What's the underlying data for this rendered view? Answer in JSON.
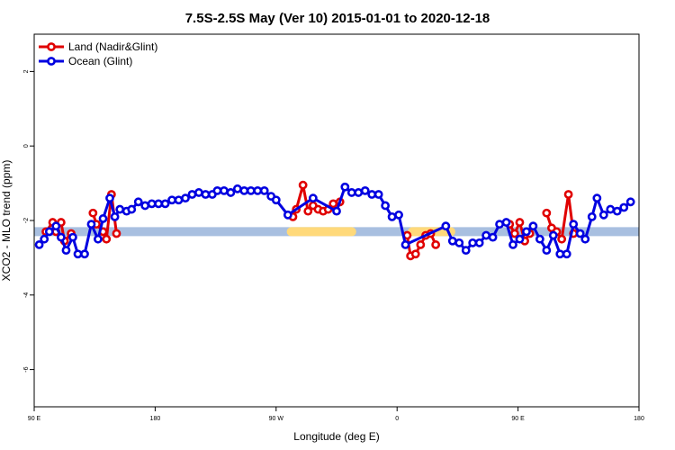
{
  "chart_data": {
    "type": "line",
    "title": "7.5S-2.5S May (Ver 10)   2015-01-01 to 2020-12-18",
    "xlabel": "Longitude (deg E)",
    "ylabel": "XCO2 - MLO trend (ppm)",
    "xlim": [
      90,
      450
    ],
    "ylim": [
      -7,
      3
    ],
    "xticks": [
      {
        "value": 90,
        "label": "90 E"
      },
      {
        "value": 162,
        "label": "180"
      },
      {
        "value": 234,
        "label": "90 W"
      },
      {
        "value": 306,
        "label": "0"
      },
      {
        "value": 378,
        "label": "90 E"
      },
      {
        "value": 450,
        "label": "180"
      }
    ],
    "yticks": [
      {
        "value": -6,
        "label": "-6"
      },
      {
        "value": -4,
        "label": "-4"
      },
      {
        "value": -2,
        "label": "-2"
      },
      {
        "value": 0,
        "label": "0"
      },
      {
        "value": 2,
        "label": "2"
      }
    ],
    "legend_position": "top-left",
    "grid": false,
    "colors": {
      "land": "#e00000",
      "ocean": "#0000e0",
      "ocean_band": "#a8bfe0",
      "land_band": "#ffd97a"
    },
    "bands": [
      {
        "name": "ocean-band",
        "x0": 90,
        "x1": 450,
        "y": -2.3,
        "color": "#a8bfe0"
      },
      {
        "name": "land-band",
        "x0": 243,
        "x1": 279,
        "y": -2.3,
        "color": "#ffd97a"
      },
      {
        "name": "land-band",
        "x0": 315,
        "x1": 338,
        "y": -2.3,
        "color": "#ffd97a"
      }
    ],
    "series": [
      {
        "name": "Land (Nadir&Glint)",
        "key": "land",
        "color": "#e00000",
        "segments": [
          [
            [
              97,
              -2.3
            ],
            [
              101,
              -2.05
            ],
            [
              103,
              -2.3
            ],
            [
              106,
              -2.05
            ],
            [
              108,
              -2.55
            ],
            [
              112,
              -2.35
            ]
          ],
          [
            [
              125,
              -1.8
            ],
            [
              127,
              -2.1
            ],
            [
              131,
              -2.3
            ],
            [
              133,
              -2.5
            ],
            [
              136,
              -1.3
            ],
            [
              139,
              -2.35
            ]
          ],
          [
            [
              244,
              -1.9
            ],
            [
              246,
              -1.7
            ],
            [
              250,
              -1.05
            ],
            [
              253,
              -1.75
            ],
            [
              256,
              -1.6
            ],
            [
              259,
              -1.7
            ],
            [
              262,
              -1.75
            ],
            [
              265,
              -1.7
            ],
            [
              268,
              -1.55
            ],
            [
              272,
              -1.5
            ]
          ],
          [
            [
              312,
              -2.4
            ],
            [
              314,
              -2.95
            ],
            [
              317,
              -2.9
            ],
            [
              320,
              -2.65
            ],
            [
              323,
              -2.4
            ],
            [
              326,
              -2.35
            ],
            [
              329,
              -2.65
            ]
          ],
          [
            [
              373,
              -2.1
            ],
            [
              376,
              -2.35
            ],
            [
              379,
              -2.05
            ],
            [
              382,
              -2.55
            ],
            [
              385,
              -2.35
            ]
          ],
          [
            [
              395,
              -1.8
            ],
            [
              398,
              -2.2
            ],
            [
              401,
              -2.3
            ],
            [
              404,
              -2.5
            ],
            [
              408,
              -1.3
            ],
            [
              411,
              -2.35
            ]
          ]
        ]
      },
      {
        "name": "Ocean (Glint)",
        "key": "ocean",
        "color": "#0000e0",
        "points": [
          [
            93,
            -2.65
          ],
          [
            96,
            -2.5
          ],
          [
            99,
            -2.3
          ],
          [
            103,
            -2.15
          ],
          [
            106,
            -2.45
          ],
          [
            109,
            -2.8
          ],
          [
            113,
            -2.45
          ],
          [
            116,
            -2.9
          ],
          [
            120,
            -2.9
          ],
          [
            124,
            -2.1
          ],
          [
            128,
            -2.5
          ],
          [
            131,
            -1.95
          ],
          [
            135,
            -1.4
          ],
          [
            138,
            -1.9
          ],
          [
            141,
            -1.7
          ],
          [
            145,
            -1.75
          ],
          [
            148,
            -1.7
          ],
          [
            152,
            -1.5
          ],
          [
            156,
            -1.6
          ],
          [
            160,
            -1.55
          ],
          [
            164,
            -1.55
          ],
          [
            168,
            -1.55
          ],
          [
            172,
            -1.45
          ],
          [
            176,
            -1.45
          ],
          [
            180,
            -1.4
          ],
          [
            184,
            -1.3
          ],
          [
            188,
            -1.25
          ],
          [
            192,
            -1.3
          ],
          [
            196,
            -1.3
          ],
          [
            199,
            -1.2
          ],
          [
            203,
            -1.2
          ],
          [
            207,
            -1.25
          ],
          [
            211,
            -1.15
          ],
          [
            215,
            -1.2
          ],
          [
            219,
            -1.2
          ],
          [
            223,
            -1.2
          ],
          [
            227,
            -1.2
          ],
          [
            231,
            -1.35
          ],
          [
            234,
            -1.45
          ],
          [
            241,
            -1.85
          ],
          [
            256,
            -1.4
          ],
          [
            270,
            -1.75
          ],
          [
            275,
            -1.1
          ],
          [
            279,
            -1.25
          ],
          [
            283,
            -1.25
          ],
          [
            287,
            -1.2
          ],
          [
            291,
            -1.3
          ],
          [
            295,
            -1.3
          ],
          [
            299,
            -1.6
          ],
          [
            303,
            -1.9
          ],
          [
            307,
            -1.85
          ],
          [
            311,
            -2.65
          ],
          [
            335,
            -2.15
          ],
          [
            339,
            -2.55
          ],
          [
            343,
            -2.6
          ],
          [
            347,
            -2.8
          ],
          [
            351,
            -2.6
          ],
          [
            355,
            -2.6
          ],
          [
            359,
            -2.4
          ],
          [
            363,
            -2.45
          ],
          [
            367,
            -2.1
          ],
          [
            371,
            -2.05
          ],
          [
            375,
            -2.65
          ],
          [
            379,
            -2.5
          ],
          [
            383,
            -2.3
          ],
          [
            387,
            -2.15
          ],
          [
            391,
            -2.5
          ],
          [
            395,
            -2.8
          ],
          [
            399,
            -2.4
          ],
          [
            403,
            -2.9
          ],
          [
            407,
            -2.9
          ],
          [
            411,
            -2.1
          ],
          [
            415,
            -2.35
          ],
          [
            418,
            -2.5
          ],
          [
            422,
            -1.9
          ],
          [
            425,
            -1.4
          ],
          [
            429,
            -1.85
          ],
          [
            433,
            -1.7
          ],
          [
            437,
            -1.75
          ],
          [
            441,
            -1.65
          ],
          [
            445,
            -1.5
          ]
        ]
      }
    ]
  }
}
